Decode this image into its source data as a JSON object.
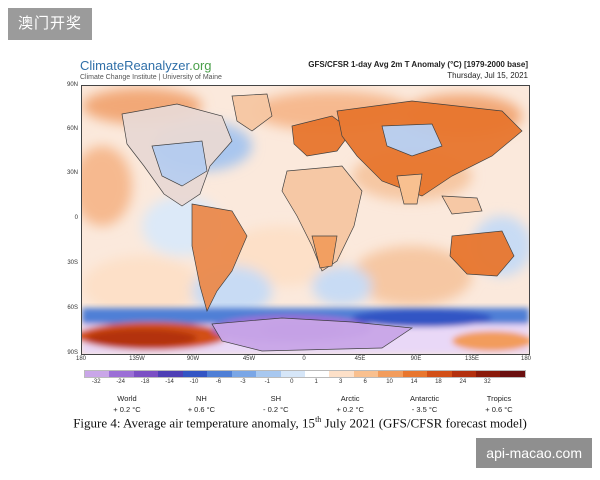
{
  "watermark_top": "澳门开奖",
  "watermark_bottom": "api-macao.com",
  "brand": {
    "name_main": "ClimateReanalyzer",
    "name_suffix": ".org",
    "subtitle": "Climate Change Institute | University of Maine"
  },
  "map": {
    "title": "GFS/CFSR 1-day Avg 2m T Anomaly (°C) [1979-2000 base]",
    "date": "Thursday, Jul 15, 2021",
    "lat_labels": [
      "90N",
      "60N",
      "30N",
      "0",
      "30S",
      "60S",
      "90S"
    ],
    "lon_labels": [
      "180",
      "135W",
      "90W",
      "45W",
      "0",
      "45E",
      "90E",
      "135E",
      "180"
    ]
  },
  "colorbar": {
    "ticks": [
      "-32",
      "-24",
      "-18",
      "-14",
      "-10",
      "-6",
      "-3",
      "-1",
      "0",
      "1",
      "3",
      "6",
      "10",
      "14",
      "18",
      "24",
      "32"
    ],
    "colors": [
      "#c9a6e8",
      "#9b6fd6",
      "#7b4fc4",
      "#4e3fb5",
      "#3355c4",
      "#4f7fd6",
      "#7aa6e6",
      "#a8c8f0",
      "#d6e6f8",
      "#ffffff",
      "#fde0c8",
      "#f9c08f",
      "#f29c5c",
      "#e8762e",
      "#d24f17",
      "#b3300e",
      "#8a1a0a",
      "#6b1010"
    ]
  },
  "stats": [
    {
      "region": "World",
      "value": "+ 0.2 °C"
    },
    {
      "region": "NH",
      "value": "+ 0.6 °C"
    },
    {
      "region": "SH",
      "value": "- 0.2 °C"
    },
    {
      "region": "Arctic",
      "value": "+ 0.2 °C"
    },
    {
      "region": "Antarctic",
      "value": "- 3.5 °C"
    },
    {
      "region": "Tropics",
      "value": "+ 0.6 °C"
    }
  ],
  "caption": {
    "before": "Figure 4: Average air temperature anomaly, 15",
    "sup": "th",
    "after": " July 2021 (GFS/CFSR forecast model)"
  }
}
